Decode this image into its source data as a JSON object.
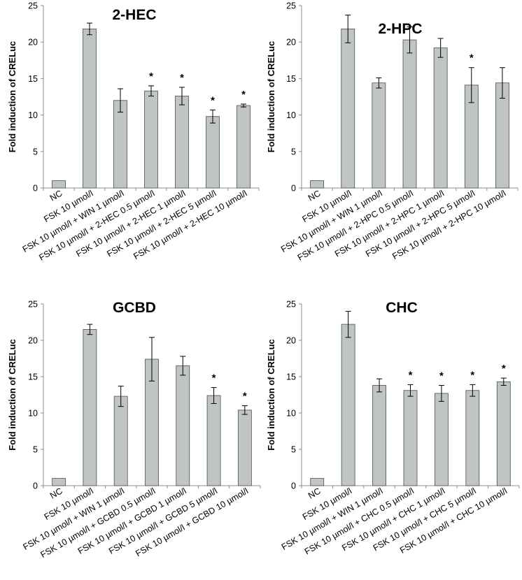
{
  "chart_data": [
    {
      "type": "bar",
      "title": "2-HEC",
      "ylabel": "Fold induction of CRELuc",
      "xlabel": "",
      "ylim": [
        0,
        25
      ],
      "yticks": [
        0,
        5,
        10,
        15,
        20,
        25
      ],
      "grid": false,
      "categories": [
        "NC",
        "FSK 10 µmol/l",
        "FSK 10 µmol/l + WIN 1 µmol/l",
        "FSK 10 µmol/l + 2-HEC 0.5 µmol/l",
        "FSK 10 µmol/l + 2-HEC 1 µmol/l",
        "FSK 10 µmol/l + 2-HEC 5 µmol/l",
        "FSK 10 µmol/l + 2-HEC 10 µmol/l"
      ],
      "values": [
        1.0,
        21.8,
        12.0,
        13.3,
        12.6,
        9.8,
        11.3
      ],
      "errors": [
        0.0,
        0.8,
        1.6,
        0.7,
        1.2,
        0.9,
        0.2
      ],
      "significance": [
        "",
        "",
        "",
        "*",
        "*",
        "*",
        "*"
      ]
    },
    {
      "type": "bar",
      "title": "2-HPC",
      "ylabel": "Fold induction of CRELuc",
      "xlabel": "",
      "ylim": [
        0,
        25
      ],
      "yticks": [
        0,
        5,
        10,
        15,
        20,
        25
      ],
      "grid": false,
      "categories": [
        "NC",
        "FSK 10 µmol/l",
        "FSK 10 µmol/l + WIN 1 µmol/l",
        "FSK 10 µmol/l + 2-HPC 0.5 µmol/l",
        "FSK 10 µmol/l + 2-HPC 1 µmol/l",
        "FSK 10 µmol/l + 2-HPC 5 µmol/l",
        "FSK 10 µmol/l + 2-HPC 10 µmol/l"
      ],
      "values": [
        1.0,
        21.8,
        14.4,
        20.3,
        19.2,
        14.1,
        14.4
      ],
      "errors": [
        0.0,
        1.9,
        0.7,
        1.8,
        1.3,
        2.4,
        2.1
      ],
      "significance": [
        "",
        "",
        "",
        "",
        "",
        "*",
        ""
      ]
    },
    {
      "type": "bar",
      "title": "GCBD",
      "ylabel": "Fold induction of CRELuc",
      "xlabel": "",
      "ylim": [
        0,
        25
      ],
      "yticks": [
        0,
        5,
        10,
        15,
        20,
        25
      ],
      "grid": false,
      "categories": [
        "NC",
        "FSK 10 µmol/l",
        "FSK 10 µmol/l + WIN 1 µmol/l",
        "FSK 10 µmol/l + GCBD 0.5 µmol/l",
        "FSK 10 µmol/l + GCBD 1 µmol/l",
        "FSK 10 µmol/l + GCBD 5 µmol/l",
        "FSK 10 µmol/l + GCBD 10 µmol/l"
      ],
      "values": [
        1.0,
        21.5,
        12.3,
        17.4,
        16.5,
        12.4,
        10.4
      ],
      "errors": [
        0.0,
        0.7,
        1.4,
        3.0,
        1.3,
        1.1,
        0.6
      ],
      "significance": [
        "",
        "",
        "",
        "",
        "",
        "*",
        "*"
      ]
    },
    {
      "type": "bar",
      "title": "CHC",
      "ylabel": "Fold induction of CRELuc",
      "xlabel": "",
      "ylim": [
        0,
        25
      ],
      "yticks": [
        0,
        5,
        10,
        15,
        20,
        25
      ],
      "grid": false,
      "categories": [
        "NC",
        "FSK 10 µmol/l",
        "FSK 10 µmol/l + WIN 1 µmol/l",
        "FSK 10 µmol/l + CHC 0.5 µmol/l",
        "FSK 10 µmol/l + CHC 1 µmol/l",
        "FSK 10 µmol/l + CHC 5 µmol/l",
        "FSK 10 µmol/l + CHC 10 µmol/l"
      ],
      "values": [
        1.0,
        22.2,
        13.8,
        13.1,
        12.7,
        13.1,
        14.3
      ],
      "errors": [
        0.0,
        1.8,
        0.9,
        0.8,
        1.1,
        0.8,
        0.5
      ],
      "significance": [
        "",
        "",
        "",
        "*",
        "*",
        "*",
        "*"
      ]
    }
  ]
}
